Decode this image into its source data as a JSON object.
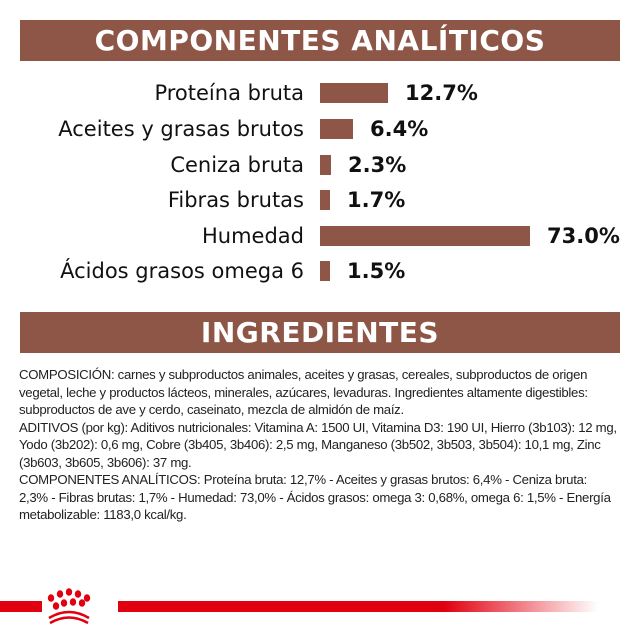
{
  "header1": "COMPONENTES ANALÍTICOS",
  "header2": "INGREDIENTES",
  "colors": {
    "accent": "#8d5646",
    "brand_red": "#e1000f"
  },
  "chart_data": {
    "type": "bar",
    "orientation": "horizontal",
    "title": "COMPONENTES ANALÍTICOS",
    "categories": [
      "Proteína bruta",
      "Aceites y grasas brutos",
      "Ceniza bruta",
      "Fibras brutas",
      "Humedad",
      "Ácidos grasos omega 6"
    ],
    "values": [
      12.7,
      6.4,
      2.3,
      1.7,
      73.0,
      1.5
    ],
    "value_labels": [
      "12.7%",
      "6.4%",
      "2.3%",
      "1.7%",
      "73.0%",
      "1.5%"
    ],
    "unit": "%",
    "grid": false
  },
  "ingredients": [
    "COMPOSICIÓN: carnes y subproductos animales, aceites y grasas, cereales, subproductos de origen vegetal, leche y productos lácteos, minerales, azúcares, levaduras. Ingredientes altamente digestibles: subproductos de ave y cerdo, caseinato, mezcla de almidón de maíz.",
    "ADITIVOS (por kg): Aditivos nutricionales: Vitamina A: 1500 UI, Vitamina D3: 190 UI, Hierro (3b103): 12 mg, Yodo (3b202): 0,6 mg, Cobre (3b405, 3b406): 2,5 mg, Manganeso (3b502, 3b503, 3b504): 10,1 mg, Zinc (3b603, 3b605, 3b606): 37 mg.",
    "COMPONENTES ANALÍTICOS: Proteína bruta: 12,7% - Aceites y grasas brutos: 6,4% - Ceniza bruta: 2,3% - Fibras brutas: 1,7% - Humedad: 73,0% - Ácidos grasos: omega 3: 0,68%, omega 6: 1,5% - Energía metabolizable: 1183,0 kcal/kg."
  ],
  "logo": {
    "icon": "royal-canin-crown-icon"
  }
}
